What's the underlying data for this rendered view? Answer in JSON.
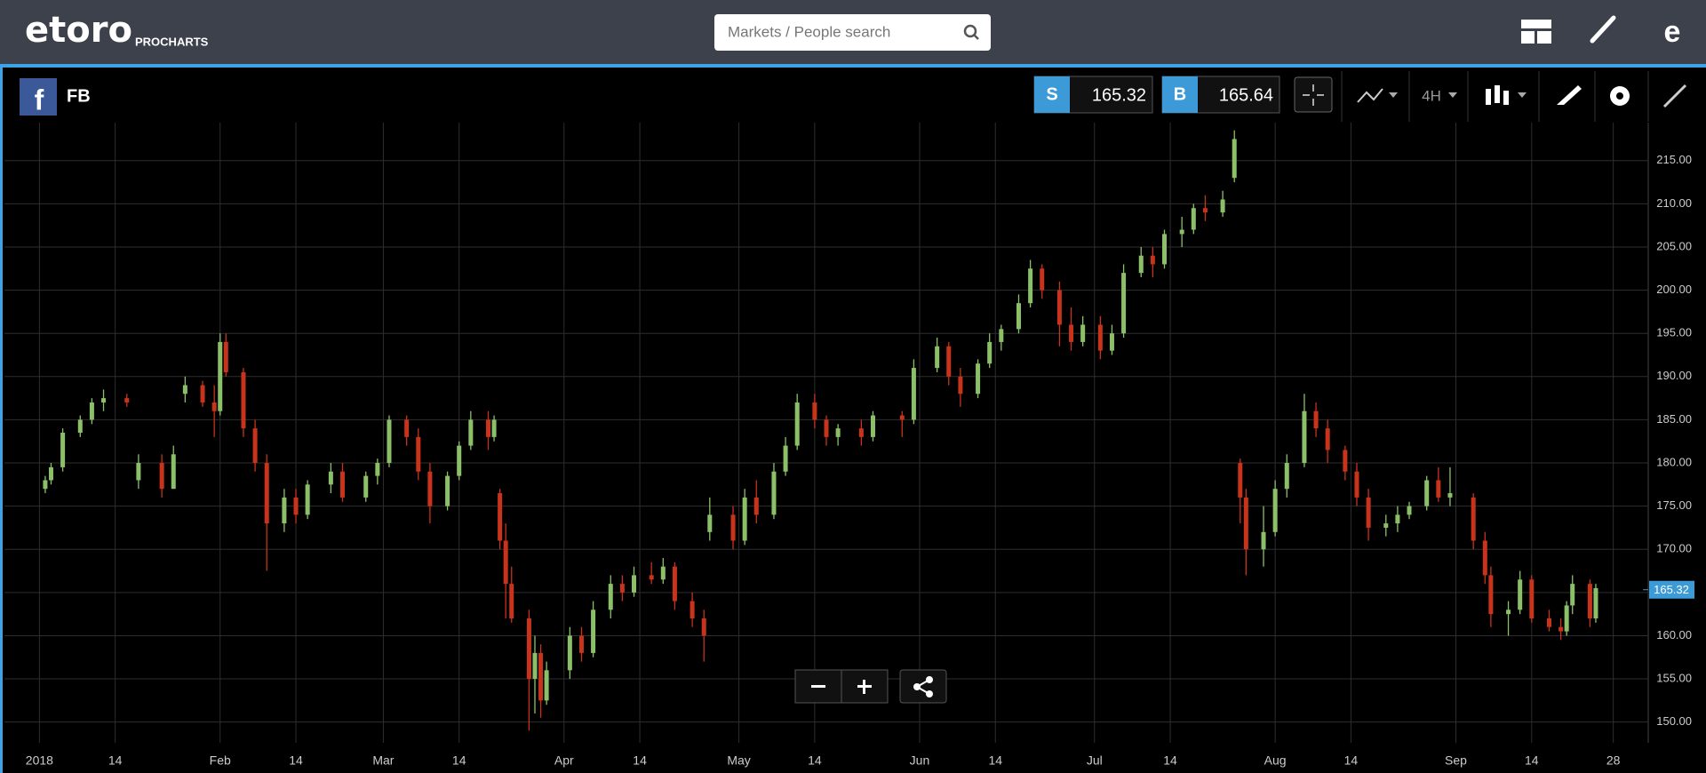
{
  "header": {
    "logo": "etoro",
    "product": "PROCHARTS",
    "search_placeholder": "Markets / People search"
  },
  "toolbar": {
    "symbol": "FB",
    "sell_label": "S",
    "sell_price": 165.32,
    "buy_label": "B",
    "buy_price": 165.64,
    "timeframe": "4H"
  },
  "chart_data": {
    "type": "candlestick",
    "x": [
      "2018-01-02",
      "2018-01-03",
      "2018-01-05",
      "2018-01-08",
      "2018-01-10",
      "2018-01-12",
      "2018-01-16",
      "2018-01-18",
      "2018-01-22",
      "2018-01-24",
      "2018-01-26",
      "2018-01-29",
      "2018-01-31",
      "2018-02-01",
      "2018-02-02",
      "2018-02-05",
      "2018-02-07",
      "2018-02-09",
      "2018-02-12",
      "2018-02-14",
      "2018-02-16",
      "2018-02-20",
      "2018-02-22",
      "2018-02-26",
      "2018-02-28",
      "2018-03-02",
      "2018-03-05",
      "2018-03-07",
      "2018-03-09",
      "2018-03-12",
      "2018-03-14",
      "2018-03-16",
      "2018-03-19",
      "2018-03-20",
      "2018-03-21",
      "2018-03-22",
      "2018-03-23",
      "2018-03-26",
      "2018-03-27",
      "2018-03-28",
      "2018-03-29",
      "2018-04-02",
      "2018-04-04",
      "2018-04-06",
      "2018-04-09",
      "2018-04-11",
      "2018-04-13",
      "2018-04-16",
      "2018-04-18",
      "2018-04-20",
      "2018-04-23",
      "2018-04-25",
      "2018-04-26",
      "2018-04-30",
      "2018-05-02",
      "2018-05-04",
      "2018-05-07",
      "2018-05-09",
      "2018-05-11",
      "2018-05-14",
      "2018-05-16",
      "2018-05-18",
      "2018-05-22",
      "2018-05-24",
      "2018-05-29",
      "2018-05-31",
      "2018-06-04",
      "2018-06-06",
      "2018-06-08",
      "2018-06-11",
      "2018-06-13",
      "2018-06-15",
      "2018-06-18",
      "2018-06-20",
      "2018-06-22",
      "2018-06-25",
      "2018-06-27",
      "2018-06-29",
      "2018-07-02",
      "2018-07-04",
      "2018-07-06",
      "2018-07-09",
      "2018-07-11",
      "2018-07-13",
      "2018-07-16",
      "2018-07-18",
      "2018-07-20",
      "2018-07-23",
      "2018-07-25",
      "2018-07-26",
      "2018-07-27",
      "2018-07-30",
      "2018-08-01",
      "2018-08-03",
      "2018-08-06",
      "2018-08-08",
      "2018-08-10",
      "2018-08-13",
      "2018-08-15",
      "2018-08-17",
      "2018-08-20",
      "2018-08-22",
      "2018-08-24",
      "2018-08-27",
      "2018-08-29",
      "2018-08-31",
      "2018-09-04",
      "2018-09-06",
      "2018-09-07",
      "2018-09-10",
      "2018-09-12",
      "2018-09-14",
      "2018-09-17",
      "2018-09-19",
      "2018-09-20",
      "2018-09-21",
      "2018-09-24",
      "2018-09-25"
    ],
    "open": [
      177,
      178,
      179.5,
      183.5,
      185,
      187,
      187.5,
      178,
      180,
      177,
      188,
      189,
      187,
      186,
      194,
      190.5,
      184,
      180,
      173,
      176,
      174,
      177.5,
      179,
      176,
      178.5,
      180,
      185,
      183,
      179,
      175,
      178.5,
      182,
      185,
      183,
      176.5,
      171,
      166,
      162,
      155,
      158,
      152.5,
      156,
      160,
      158,
      163,
      166,
      165,
      167,
      166.5,
      168,
      164,
      162,
      172,
      174,
      171,
      176,
      174,
      179,
      182,
      187,
      185,
      183,
      184,
      183,
      185.5,
      185,
      191,
      193.5,
      190,
      188,
      191.5,
      194,
      195.5,
      198.5,
      202.5,
      200,
      196,
      194,
      196,
      193,
      195,
      202,
      204,
      203,
      206.5,
      207,
      209.5,
      209,
      213,
      180,
      176,
      170,
      172,
      177,
      180,
      186,
      184,
      181.5,
      179,
      176,
      172.5,
      173,
      174,
      175,
      178,
      176,
      176,
      171,
      167,
      162.5,
      163,
      166.5,
      162,
      161,
      160.5,
      163.5,
      166,
      162
    ],
    "high": [
      178.5,
      180,
      184,
      185.5,
      187.5,
      188.5,
      188,
      181,
      181,
      182,
      190,
      189.5,
      189,
      195,
      195,
      191,
      185,
      181,
      177,
      177,
      178,
      180,
      180,
      179,
      180.5,
      185.5,
      185.5,
      184,
      180,
      179,
      182.5,
      186,
      186,
      185.5,
      177,
      173,
      168,
      163,
      160,
      159,
      157,
      161,
      161,
      164,
      167,
      167,
      168,
      168.5,
      169,
      168.5,
      165,
      163,
      176,
      175,
      177,
      178,
      180,
      183,
      188,
      188,
      185.5,
      184.5,
      185,
      186,
      186,
      192,
      194.5,
      194,
      191,
      192,
      195,
      196,
      199.5,
      203.5,
      203,
      201,
      198,
      197,
      197,
      196,
      203,
      205,
      205,
      207,
      208.5,
      210,
      211,
      211.5,
      218.5,
      180.5,
      177,
      175,
      178,
      181,
      188,
      187,
      185,
      182,
      180,
      177,
      174,
      175,
      175.5,
      178.5,
      179.5,
      179.5,
      176.5,
      172,
      168,
      164,
      167.5,
      167,
      163,
      162,
      164,
      167,
      166.5,
      166
    ],
    "low": [
      176.5,
      177.5,
      179,
      183,
      184.5,
      186,
      186.5,
      177,
      176,
      177,
      187,
      186.5,
      183,
      185.5,
      190,
      183,
      179,
      167.5,
      172,
      173,
      173.5,
      176.5,
      175.5,
      175.5,
      177.5,
      179.5,
      182,
      178,
      173,
      174.5,
      178,
      181.5,
      181.5,
      182.5,
      170,
      162,
      161.5,
      149,
      151,
      150.5,
      152,
      155,
      157,
      157.5,
      162,
      164,
      164.5,
      166,
      166,
      163,
      161,
      157,
      171,
      170,
      170.5,
      173,
      173.5,
      178.5,
      181.5,
      184,
      182,
      182,
      182,
      182.5,
      183,
      184.5,
      190.5,
      189,
      186.5,
      187.5,
      191,
      193,
      195,
      198,
      199,
      193.5,
      193,
      193.5,
      192,
      192.5,
      194.5,
      201.5,
      201.5,
      202.5,
      205,
      206.5,
      208,
      208.5,
      212.5,
      173,
      167,
      168,
      171.5,
      176,
      179.5,
      183,
      180,
      178,
      175,
      171,
      171.5,
      172,
      173.5,
      174.5,
      175.5,
      175,
      170,
      166,
      161,
      160,
      162.5,
      161.5,
      160.5,
      159.5,
      160,
      162.5,
      161,
      161.5
    ],
    "close": [
      178,
      179.5,
      183.5,
      185,
      187,
      187.5,
      187,
      180,
      177,
      181,
      189,
      187,
      186,
      194,
      190.5,
      184,
      180,
      173,
      176,
      174,
      177.5,
      179,
      176,
      178.5,
      180,
      185,
      183,
      179,
      175,
      178.5,
      182,
      185,
      183,
      185,
      171,
      166,
      162,
      155,
      158,
      152.5,
      156,
      160,
      158,
      163,
      166,
      165,
      167,
      166.5,
      168,
      164,
      162,
      160,
      174,
      171,
      176,
      174,
      179,
      182,
      187,
      185,
      183,
      184,
      183,
      185.5,
      185,
      191,
      193.5,
      190,
      188,
      191.5,
      194,
      195.5,
      198.5,
      202.5,
      200,
      196,
      194,
      196,
      193,
      195,
      202,
      204,
      203,
      206.5,
      207,
      209.5,
      209,
      210.5,
      217.5,
      176,
      170,
      172,
      177,
      180,
      186,
      184,
      181.5,
      179,
      176,
      172.5,
      173,
      174,
      175,
      178,
      176,
      176.5,
      171,
      167,
      162.5,
      163,
      166.5,
      162,
      161,
      160.5,
      163.5,
      166,
      162,
      165.5
    ],
    "up_color": "#8cc068",
    "down_color": "#c8331b",
    "last_price": 165.32,
    "last_color": "#3c9ad6",
    "xlim": [
      "2017-12-26",
      "2018-10-04"
    ],
    "ylim": [
      147.6,
      219.4
    ],
    "xticks": [
      {
        "value": "2018-01-01",
        "label": "2018"
      },
      {
        "value": "2018-01-14",
        "label": "14"
      },
      {
        "value": "2018-02-01",
        "label": "Feb"
      },
      {
        "value": "2018-02-14",
        "label": "14"
      },
      {
        "value": "2018-03-01",
        "label": "Mar"
      },
      {
        "value": "2018-03-14",
        "label": "14"
      },
      {
        "value": "2018-04-01",
        "label": "Apr"
      },
      {
        "value": "2018-04-14",
        "label": "14"
      },
      {
        "value": "2018-05-01",
        "label": "May"
      },
      {
        "value": "2018-05-14",
        "label": "14"
      },
      {
        "value": "2018-06-01",
        "label": "Jun"
      },
      {
        "value": "2018-06-14",
        "label": "14"
      },
      {
        "value": "2018-07-01",
        "label": "Jul"
      },
      {
        "value": "2018-07-14",
        "label": "14"
      },
      {
        "value": "2018-08-01",
        "label": "Aug"
      },
      {
        "value": "2018-08-14",
        "label": "14"
      },
      {
        "value": "2018-09-01",
        "label": "Sep"
      },
      {
        "value": "2018-09-14",
        "label": "14"
      },
      {
        "value": "2018-09-28",
        "label": "28"
      }
    ],
    "yticks": [
      {
        "value": 150,
        "label": "150.00"
      },
      {
        "value": 155,
        "label": "155.00"
      },
      {
        "value": 160,
        "label": "160.00"
      },
      {
        "value": 165,
        "label": "165.00"
      },
      {
        "value": 170,
        "label": "170.00"
      },
      {
        "value": 175,
        "label": "175.00"
      },
      {
        "value": 180,
        "label": "180.00"
      },
      {
        "value": 185,
        "label": "185.00"
      },
      {
        "value": 190,
        "label": "190.00"
      },
      {
        "value": 195,
        "label": "195.00"
      },
      {
        "value": 200,
        "label": "200.00"
      },
      {
        "value": 205,
        "label": "205.00"
      },
      {
        "value": 210,
        "label": "210.00"
      },
      {
        "value": 215,
        "label": "215.00"
      }
    ],
    "grid": true
  }
}
